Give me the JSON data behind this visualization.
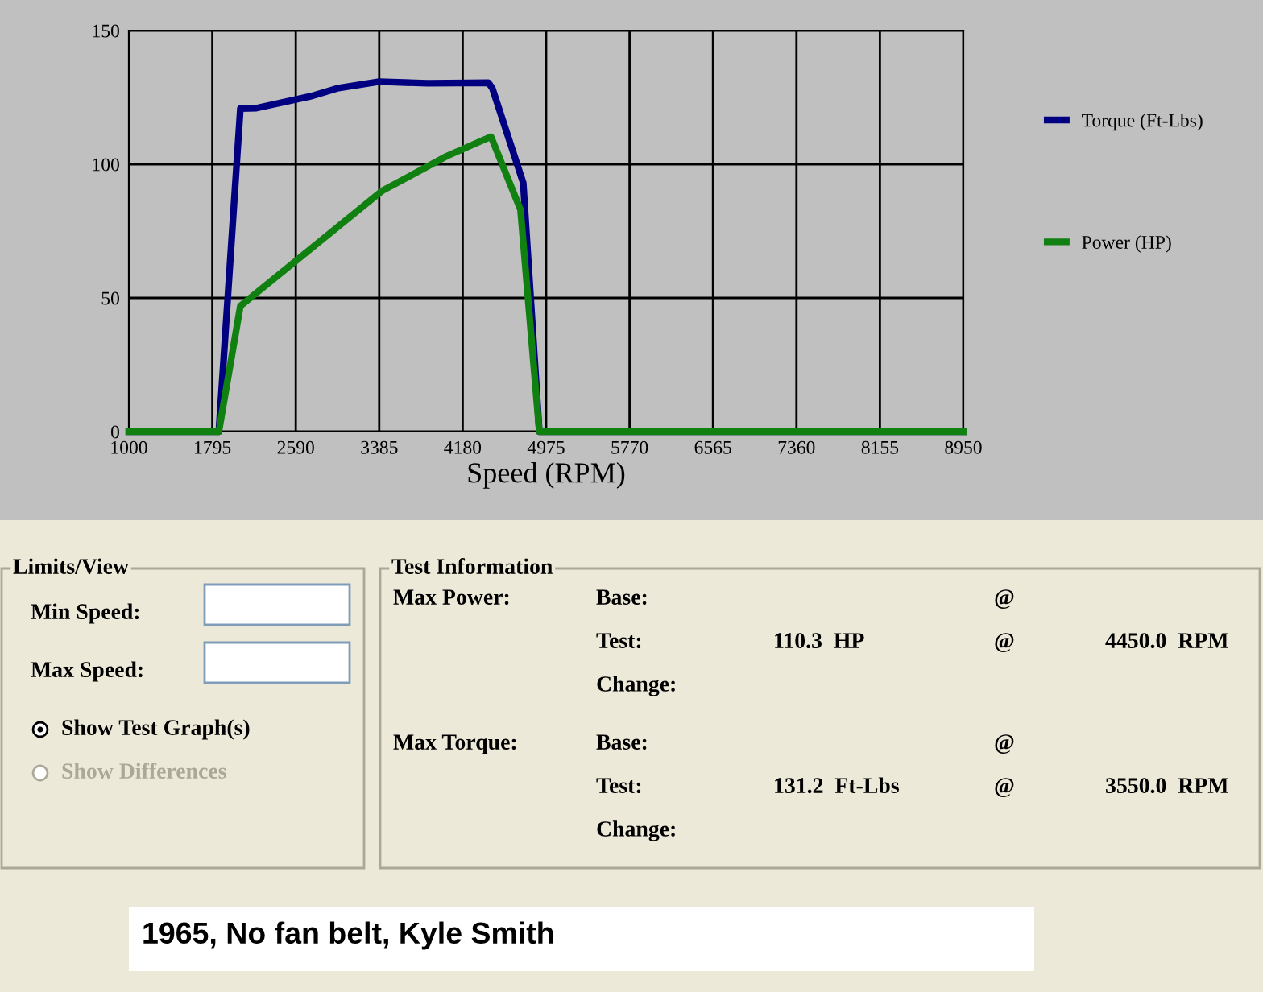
{
  "chart_data": [
    {
      "type": "line",
      "xlabel": "Speed (RPM)",
      "xlim": [
        1000,
        8950
      ],
      "xticks": [
        1000,
        1795,
        2590,
        3385,
        4180,
        4975,
        5770,
        6565,
        7360,
        8155,
        8950
      ],
      "ylim": [
        0,
        150
      ],
      "yticks": [
        0,
        50,
        100,
        150
      ],
      "grid": true,
      "legend": "right",
      "marker": "none",
      "line_style": "solid",
      "series": [
        {
          "name": "Torque (Ft-Lbs)",
          "color": "#000080",
          "x": [
            1000,
            1857,
            2062,
            2216,
            2729,
            2985,
            3385,
            3847,
            4425,
            4463,
            4757,
            4910,
            8950
          ],
          "values": [
            0,
            0,
            120.8,
            121,
            125.4,
            128.4,
            130.9,
            130.3,
            130.5,
            128.4,
            93,
            0,
            0
          ]
        },
        {
          "name": "Power (HP)",
          "color": "#108010",
          "x": [
            1000,
            1857,
            2062,
            3411,
            4026,
            4450,
            4731,
            4910,
            8950
          ],
          "values": [
            0,
            0,
            47,
            90,
            103,
            110.3,
            83,
            0,
            0
          ]
        }
      ]
    },
    {
      "type": "other",
      "title": "Limits/View",
      "annotations": [
        "Min Speed:",
        "Max Speed:",
        "Show Test Graph(s)",
        "Show Differences"
      ]
    },
    {
      "type": "other",
      "title": "Test Information",
      "annotations": [
        "Max Power:",
        "Base:",
        "@",
        "Test:",
        "110.3  HP",
        "@",
        "4450.0  RPM",
        "Change:",
        "Max Torque:",
        "Base:",
        "@",
        "Test:",
        "131.2  Ft-Lbs",
        "@",
        "3550.0  RPM",
        "Change:"
      ]
    },
    {
      "type": "other",
      "annotations": [
        "1965, No fan belt, Kyle Smith"
      ]
    }
  ]
}
